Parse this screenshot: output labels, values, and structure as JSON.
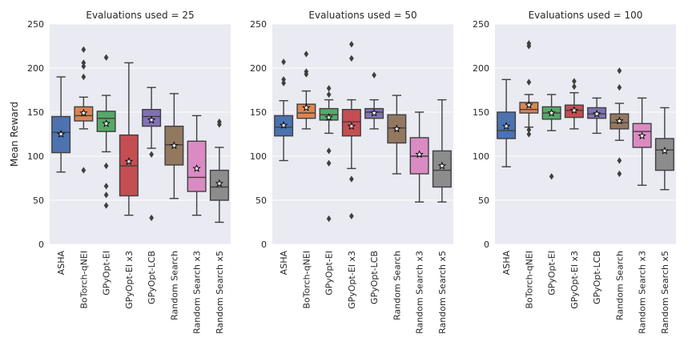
{
  "chart_data": [
    {
      "type": "box",
      "title": "Evaluations used = 25",
      "ylabel": "Mean Reward",
      "ylim": [
        0,
        250
      ],
      "yticks": [
        0,
        50,
        100,
        150,
        200,
        250
      ],
      "categories": [
        "ASHA",
        "BoTorch-qNEI",
        "GPyOpt-EI",
        "GPyOpt-EI x3",
        "GPyOpt-LCB",
        "Random Search",
        "Random Search x3",
        "Random Search x5"
      ],
      "boxes": [
        {
          "whisker_low": 82,
          "q1": 104,
          "median": 127,
          "q3": 145,
          "whisker_high": 190,
          "mean": 125,
          "outliers": []
        },
        {
          "whisker_low": 131,
          "q1": 140,
          "median": 146,
          "q3": 156,
          "whisker_high": 167,
          "mean": 149,
          "outliers": [
            84,
            190,
            202,
            206,
            221
          ]
        },
        {
          "whisker_low": 105,
          "q1": 128,
          "median": 143,
          "q3": 151,
          "whisker_high": 169,
          "mean": 137,
          "outliers": [
            44,
            56,
            66,
            89,
            212
          ]
        },
        {
          "whisker_low": 33,
          "q1": 55,
          "median": 89,
          "q3": 124,
          "whisker_high": 206,
          "mean": 94,
          "outliers": []
        },
        {
          "whisker_low": 109,
          "q1": 134,
          "median": 145,
          "q3": 153,
          "whisker_high": 178,
          "mean": 141,
          "outliers": [
            30,
            102
          ]
        },
        {
          "whisker_low": 52,
          "q1": 90,
          "median": 113,
          "q3": 134,
          "whisker_high": 171,
          "mean": 112,
          "outliers": []
        },
        {
          "whisker_low": 33,
          "q1": 60,
          "median": 76,
          "q3": 117,
          "whisker_high": 146,
          "mean": 86,
          "outliers": []
        },
        {
          "whisker_low": 25,
          "q1": 50,
          "median": 65,
          "q3": 84,
          "whisker_high": 110,
          "mean": 69,
          "outliers": [
            136,
            139
          ]
        }
      ]
    },
    {
      "type": "box",
      "title": "Evaluations used = 50",
      "ylabel": "",
      "ylim": [
        0,
        250
      ],
      "yticks": [
        0,
        50,
        100,
        150,
        200,
        250
      ],
      "categories": [
        "ASHA",
        "BoTorch-qNEI",
        "GPyOpt-EI",
        "GPyOpt-EI x3",
        "GPyOpt-LCB",
        "Random Search",
        "Random Search x3",
        "Random Search x5"
      ],
      "boxes": [
        {
          "whisker_low": 95,
          "q1": 123,
          "median": 133,
          "q3": 146,
          "whisker_high": 163,
          "mean": 135,
          "outliers": [
            183,
            187,
            207
          ]
        },
        {
          "whisker_low": 131,
          "q1": 143,
          "median": 149,
          "q3": 159,
          "whisker_high": 174,
          "mean": 155,
          "outliers": [
            193,
            196,
            216
          ]
        },
        {
          "whisker_low": 126,
          "q1": 141,
          "median": 147,
          "q3": 154,
          "whisker_high": 164,
          "mean": 144,
          "outliers": [
            29,
            92,
            106,
            170,
            177
          ]
        },
        {
          "whisker_low": 86,
          "q1": 123,
          "median": 139,
          "q3": 153,
          "whisker_high": 164,
          "mean": 134,
          "outliers": [
            32,
            74,
            211,
            227
          ]
        },
        {
          "whisker_low": 131,
          "q1": 143,
          "median": 150,
          "q3": 154,
          "whisker_high": 164,
          "mean": 149,
          "outliers": [
            192
          ]
        },
        {
          "whisker_low": 80,
          "q1": 115,
          "median": 132,
          "q3": 147,
          "whisker_high": 169,
          "mean": 131,
          "outliers": []
        },
        {
          "whisker_low": 48,
          "q1": 80,
          "median": 100,
          "q3": 121,
          "whisker_high": 150,
          "mean": 102,
          "outliers": []
        },
        {
          "whisker_low": 48,
          "q1": 65,
          "median": 84,
          "q3": 106,
          "whisker_high": 164,
          "mean": 89,
          "outliers": []
        }
      ]
    },
    {
      "type": "box",
      "title": "Evaluations used = 100",
      "ylabel": "",
      "ylim": [
        0,
        250
      ],
      "yticks": [
        0,
        50,
        100,
        150,
        200,
        250
      ],
      "categories": [
        "ASHA",
        "BoTorch-qNEI",
        "GPyOpt-EI",
        "GPyOpt-EI x3",
        "GPyOpt-LCB",
        "Random Search",
        "Random Search x3",
        "Random Search x5"
      ],
      "boxes": [
        {
          "whisker_low": 88,
          "q1": 120,
          "median": 129,
          "q3": 150,
          "whisker_high": 187,
          "mean": 134,
          "outliers": []
        },
        {
          "whisker_low": 133,
          "q1": 149,
          "median": 153,
          "q3": 161,
          "whisker_high": 170,
          "mean": 158,
          "outliers": [
            125,
            130,
            184,
            225,
            228
          ]
        },
        {
          "whisker_low": 129,
          "q1": 142,
          "median": 149,
          "q3": 156,
          "whisker_high": 170,
          "mean": 149,
          "outliers": [
            77
          ]
        },
        {
          "whisker_low": 131,
          "q1": 144,
          "median": 152,
          "q3": 158,
          "whisker_high": 172,
          "mean": 152,
          "outliers": [
            179,
            185
          ]
        },
        {
          "whisker_low": 126,
          "q1": 143,
          "median": 148,
          "q3": 155,
          "whisker_high": 166,
          "mean": 148,
          "outliers": []
        },
        {
          "whisker_low": 118,
          "q1": 131,
          "median": 138,
          "q3": 148,
          "whisker_high": 160,
          "mean": 140,
          "outliers": [
            80,
            95,
            178,
            197
          ]
        },
        {
          "whisker_low": 67,
          "q1": 110,
          "median": 128,
          "q3": 137,
          "whisker_high": 166,
          "mean": 123,
          "outliers": []
        },
        {
          "whisker_low": 62,
          "q1": 84,
          "median": 107,
          "q3": 120,
          "whisker_high": 155,
          "mean": 106,
          "outliers": []
        }
      ]
    }
  ],
  "style": {
    "panel_background": "#EAEAF2",
    "grid_color": "#FFFFFF",
    "line_color": "#3F3F3F",
    "palette": [
      "#4C72B0",
      "#DD8452",
      "#55A868",
      "#C44E52",
      "#8172B3",
      "#937860",
      "#DA8BC3",
      "#8C8C8C"
    ],
    "grid": true,
    "mean_marker": "star"
  }
}
